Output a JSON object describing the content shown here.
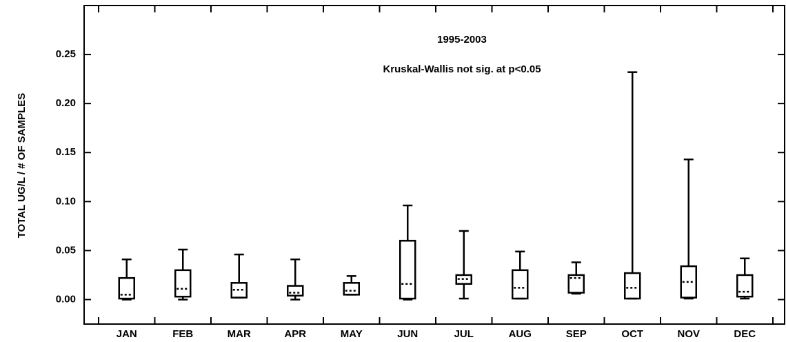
{
  "chart_data": {
    "type": "box",
    "title": "1995-2003",
    "subtitle": "Kruskal-Wallis not sig. at p<0.05",
    "y_label": "TOTAL UG/L / # OF SAMPLES",
    "categories": [
      "JAN",
      "FEB",
      "MAR",
      "APR",
      "MAY",
      "JUN",
      "JUL",
      "AUG",
      "SEP",
      "OCT",
      "NOV",
      "DEC"
    ],
    "min": [
      0.0,
      0.0,
      0.002,
      0.0,
      0.005,
      0.0,
      0.001,
      0.001,
      0.006,
      0.001,
      0.001,
      0.001
    ],
    "q1": [
      0.001,
      0.003,
      0.002,
      0.004,
      0.005,
      0.001,
      0.016,
      0.001,
      0.007,
      0.001,
      0.002,
      0.003
    ],
    "median": [
      0.005,
      0.011,
      0.01,
      0.007,
      0.009,
      0.016,
      0.021,
      0.012,
      0.022,
      0.012,
      0.018,
      0.008
    ],
    "q3": [
      0.022,
      0.03,
      0.017,
      0.014,
      0.017,
      0.06,
      0.025,
      0.03,
      0.025,
      0.027,
      0.034,
      0.025
    ],
    "max": [
      0.041,
      0.051,
      0.046,
      0.041,
      0.024,
      0.096,
      0.07,
      0.049,
      0.038,
      0.232,
      0.143,
      0.042
    ],
    "color": "#000000",
    "ylim": [
      -0.025,
      0.3
    ],
    "yticks": [
      {
        "value": 0,
        "label": "0.00"
      },
      0.05,
      {
        "value": 0.1,
        "label": "0.10"
      },
      0.15,
      {
        "value": 0.2,
        "label": "0.20"
      },
      0.25
    ]
  }
}
